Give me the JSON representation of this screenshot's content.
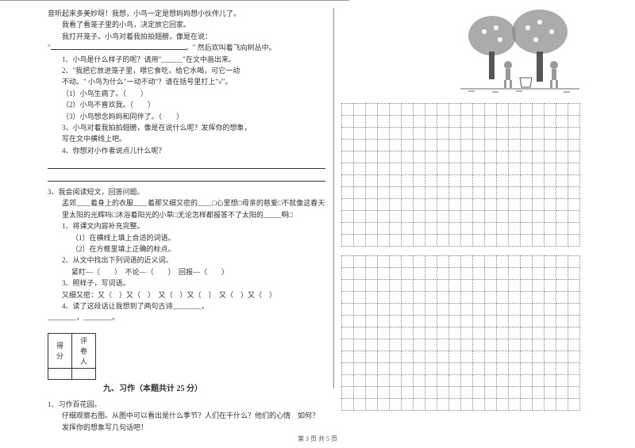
{
  "left": {
    "line1": "音听起来多美妙呀！我想，小鸟一定是想妈妈想小伙伴儿了。",
    "line2": "我看了看笼子里的小鸟，决定放它回家。",
    "line3": "我打开笼子。小鸟对着我拍拍翅膀，像是在说：",
    "line4_suffix": "。\" 然后欢叫着飞向树丛中。",
    "q1": "1、小鸟是什么样子的呢？请用\"______\"在文中画出来。",
    "q2a": "2、\"我把它放进笼子里，喂它食吃，给它水喝，可它一动",
    "q2b": "不动。\" 小鸟为什么\"一动不动\"？请在括号里打上\"√\"。",
    "opt1": "（1）小鸟生病了。（　　）",
    "opt2": "（2）小鸟不喜欢我。（　　）",
    "opt3": "（3）小鸟想念妈妈和同伴了。（　　）",
    "q3a": "3、小鸟对着我拍拍翅膀，像是在说什么呢？发挥你的想象，",
    "q3b": "写在文中横线上吧。",
    "q4": "4、你想对小作者说点儿什么呢？",
    "para3_title": "3、我会阅读短文，回答问题。",
    "para3_body": "孟郊____着身上的衣服____着那又细又密的____□心里想□母亲的慈爱□不就像这春天里太阳的光辉吗□沐浴着阳光的小草□无论怎样都报答不了太阳的_____啊□",
    "p3_q1": "1、将课文内容补充完整。",
    "p3_q1a": "（1）在横线上填上合适的词语。",
    "p3_q1b": "（2）在方框里填上正确的标点。",
    "p3_q2": "2、从文中找出下列词语的近义词。",
    "p3_q2a": "紧盯—（　　）　不论—（　　）　回报—（　　）",
    "p3_q3": "3、照样子，写词语。",
    "p3_q3a": "又细又密：又（　）又（　）　又（　）又（　）　又（　）又（　）",
    "p3_q4a": "4、读了这段话让我想到了两句古诗________，",
    "p3_q4b": "________，________。",
    "score_c1": "得分",
    "score_c2": "评卷人",
    "section9": "九、习作（本题共计 25 分）",
    "comp_title": "1、习作百花园。",
    "comp_body": "仔细观察右图。从图中可以看出是什么季节？人们在干什么？他们的心情　如何？发挥你的想象写几句话吧！"
  },
  "grid": {
    "cols": 20,
    "rows1": 12,
    "rows2": 13
  },
  "footer": "第 3 页 共 5 页"
}
